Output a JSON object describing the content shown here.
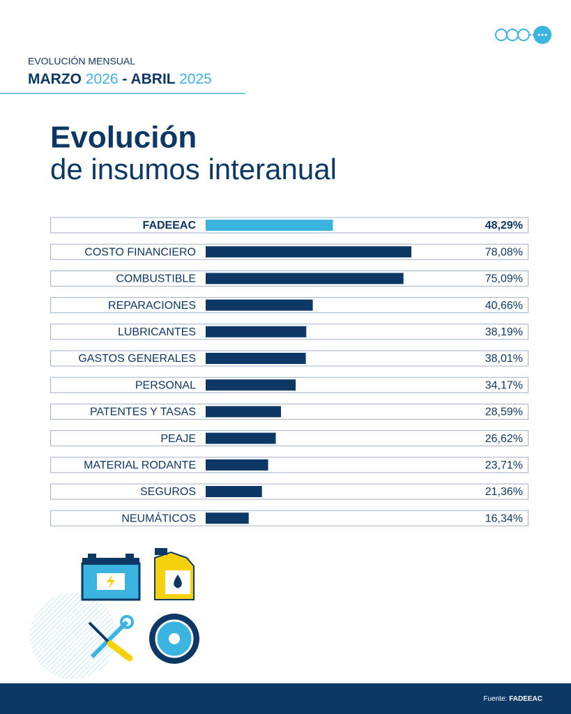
{
  "header": {
    "kicker": "EVOLUCIÓN MENSUAL",
    "from_month": "MARZO",
    "from_year": "2026",
    "separator": "-",
    "to_month": "ABRIL",
    "to_year": "2025"
  },
  "title": {
    "line1": "Evolución",
    "line2": "de insumos interanual"
  },
  "chart_data": {
    "type": "bar",
    "orientation": "horizontal",
    "categories": [
      "FADEEAC",
      "COSTO FINANCIERO",
      "COMBUSTIBLE",
      "REPARACIONES",
      "LUBRICANTES",
      "GASTOS GENERALES",
      "PERSONAL",
      "PATENTES Y TASAS",
      "PEAJE",
      "MATERIAL RODANTE",
      "SEGUROS",
      "NEUMÁTICOS"
    ],
    "values": [
      48.29,
      78.08,
      75.09,
      40.66,
      38.19,
      38.01,
      34.17,
      28.59,
      26.62,
      23.71,
      21.36,
      16.34
    ],
    "value_labels": [
      "48,29%",
      "78,08%",
      "75,09%",
      "40,66%",
      "38,19%",
      "38,01%",
      "34,17%",
      "28,59%",
      "26,62%",
      "23,71%",
      "21,36%",
      "16,34%"
    ],
    "colors": [
      "#3cb4e0",
      "#0d3765",
      "#0d3765",
      "#0d3765",
      "#0d3765",
      "#0d3765",
      "#0d3765",
      "#0d3765",
      "#0d3765",
      "#0d3765",
      "#0d3765",
      "#0d3765"
    ]
  },
  "footer": {
    "source_label": "Fuente:",
    "source": "FADEEAC"
  }
}
